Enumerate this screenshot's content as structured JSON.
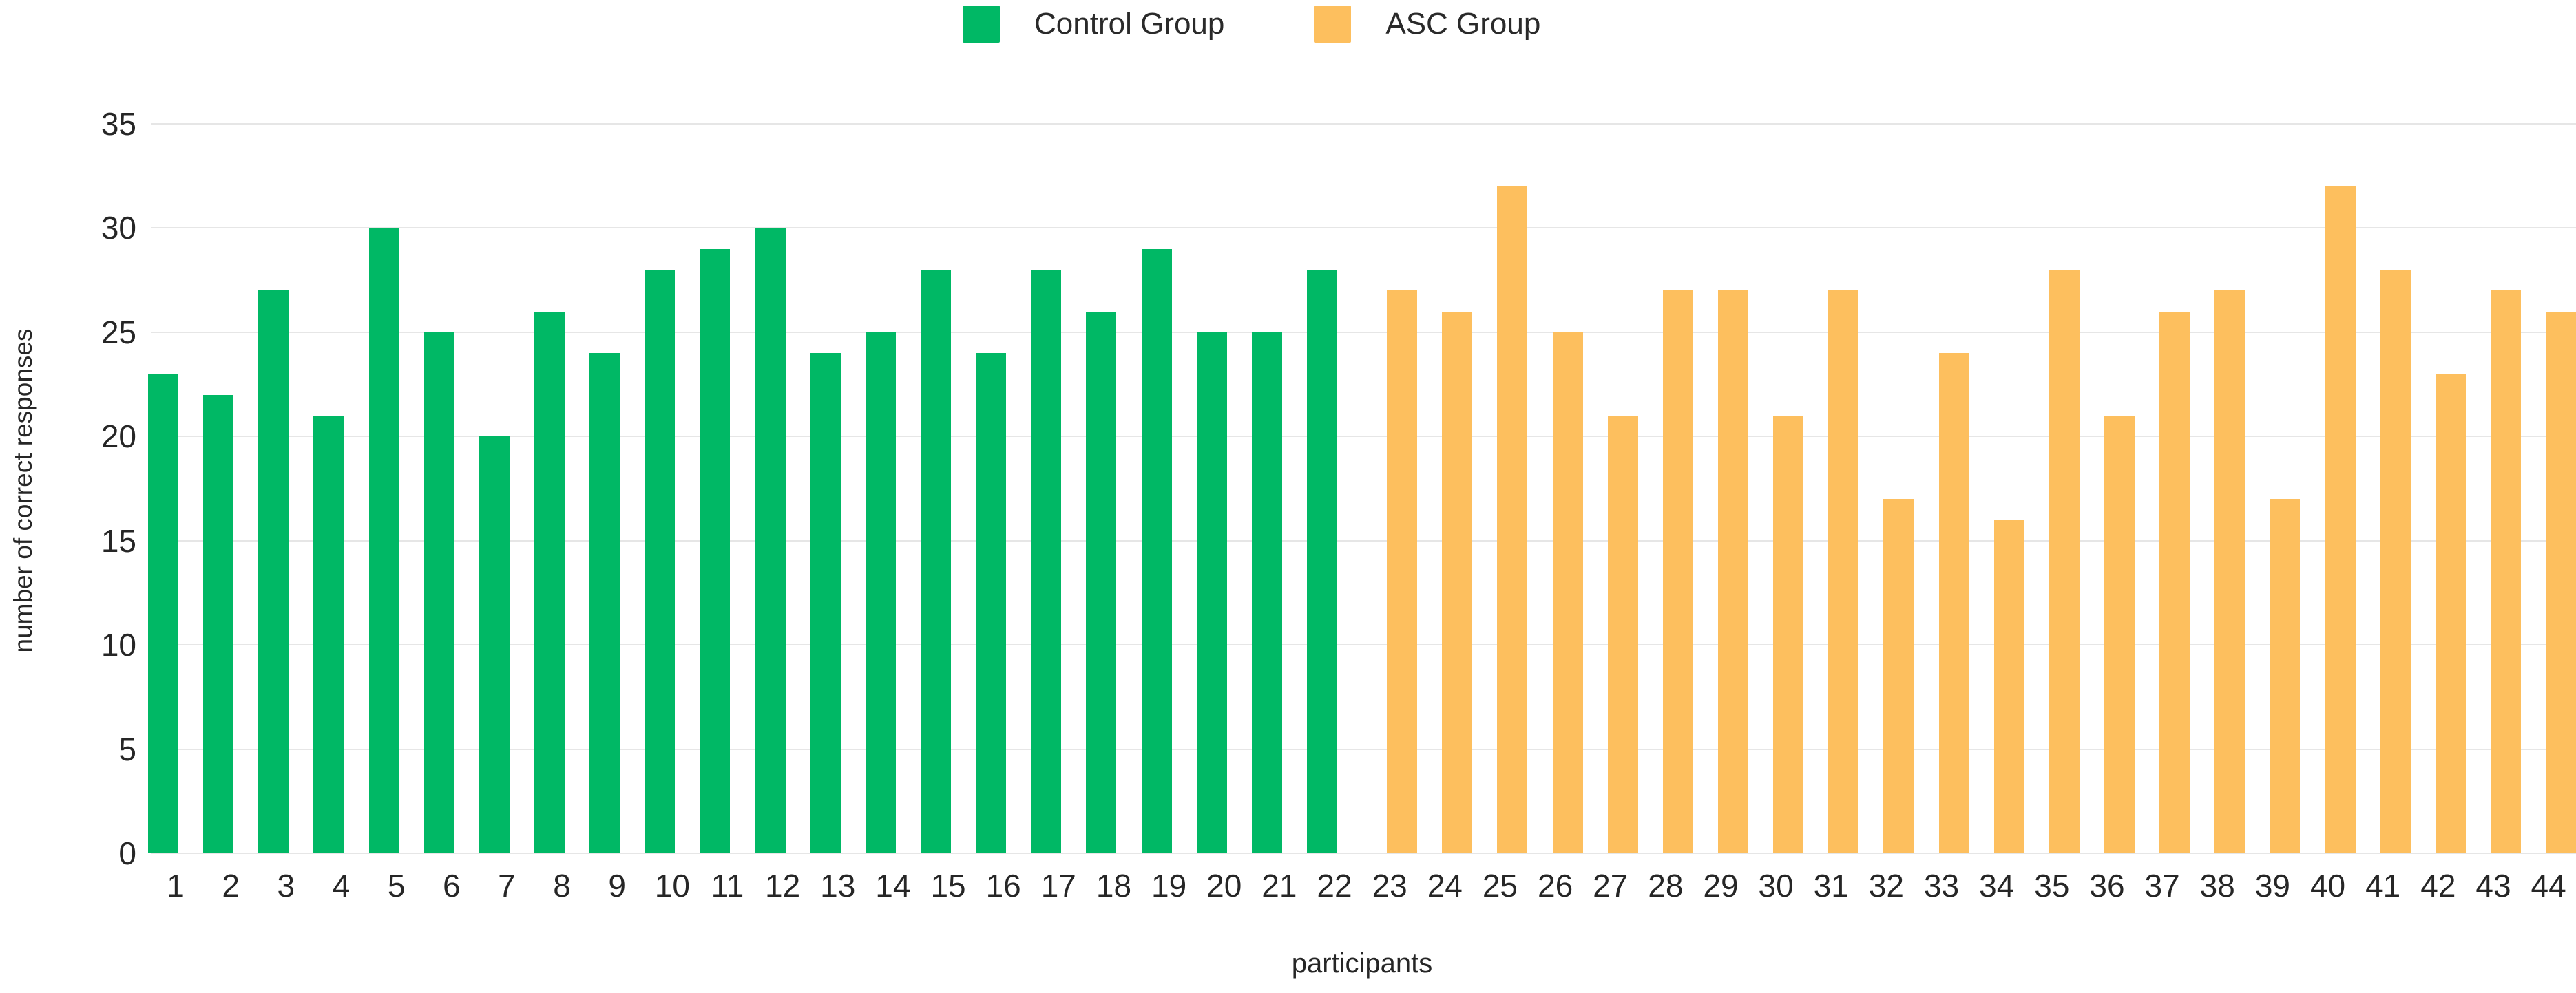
{
  "legend": {
    "items": [
      {
        "label": "Control Group",
        "color": "#00b865"
      },
      {
        "label": "ASC Group",
        "color": "#fdbf5e"
      }
    ]
  },
  "y_axis": {
    "title": "number of correct responses",
    "ticks": [
      0,
      5,
      10,
      15,
      20,
      25,
      30,
      35
    ]
  },
  "x_axis": {
    "title": "participants"
  },
  "chart_data": {
    "type": "bar",
    "title": "",
    "xlabel": "participants",
    "ylabel": "number of correct responses",
    "ylim": [
      0,
      35
    ],
    "grid": "horizontal",
    "legend_position": "top-center",
    "categories": [
      1,
      2,
      3,
      4,
      5,
      6,
      7,
      8,
      9,
      10,
      11,
      12,
      13,
      14,
      15,
      16,
      17,
      18,
      19,
      20,
      21,
      22,
      23,
      24,
      25,
      26,
      27,
      28,
      29,
      30,
      31,
      32,
      33,
      34,
      35,
      36,
      37,
      38,
      39,
      40,
      41,
      42,
      43,
      44
    ],
    "series": [
      {
        "name": "Control Group",
        "color": "#00b865",
        "participants": [
          1,
          2,
          3,
          4,
          5,
          6,
          7,
          8,
          9,
          10,
          11,
          12,
          13,
          14,
          15,
          16,
          17,
          18,
          19,
          20,
          21,
          22
        ],
        "values": [
          23,
          22,
          27,
          21,
          30,
          25,
          20,
          26,
          24,
          28,
          29,
          30,
          24,
          25,
          28,
          24,
          28,
          26,
          29,
          25,
          25,
          28
        ]
      },
      {
        "name": "ASC Group",
        "color": "#fdbf5e",
        "participants": [
          23,
          24,
          25,
          26,
          27,
          28,
          29,
          30,
          31,
          32,
          33,
          34,
          35,
          36,
          37,
          38,
          39,
          40,
          41,
          42,
          43,
          44
        ],
        "values": [
          27,
          26,
          32,
          25,
          21,
          27,
          27,
          21,
          27,
          17,
          24,
          16,
          28,
          21,
          26,
          27,
          17,
          32,
          28,
          23,
          27,
          26
        ]
      }
    ]
  }
}
